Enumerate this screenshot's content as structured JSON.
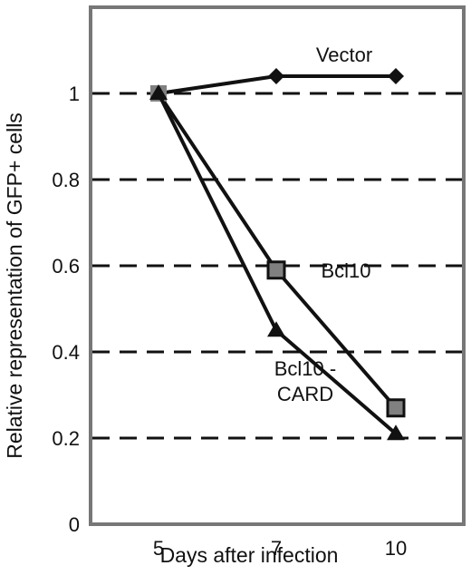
{
  "chart_data": {
    "type": "line",
    "xlabel": "Days after infection",
    "ylabel": "Relative representation of GFP+ cells",
    "x": [
      "5",
      "7",
      "10"
    ],
    "y_ticks": [
      "0",
      "0.2",
      "0.4",
      "0.6",
      "0.8",
      "1"
    ],
    "ylim": [
      0,
      1.2
    ],
    "grid": "dashed horizontal lines at 0.2, 0.4, 0.6, 0.8, 1",
    "series": [
      {
        "name": "Vector",
        "marker": "diamond",
        "marker_color": "#111111",
        "values": [
          1.0,
          1.04,
          1.04
        ]
      },
      {
        "name": "Bcl10",
        "marker": "square",
        "marker_color": "#808080",
        "values": [
          1.0,
          0.59,
          0.27
        ]
      },
      {
        "name": "Bcl10 - CARD",
        "marker": "triangle",
        "marker_color": "#111111",
        "values": [
          1.0,
          0.45,
          0.21
        ]
      }
    ],
    "annotations": [
      {
        "series": "Vector",
        "lines": [
          "Vector"
        ]
      },
      {
        "series": "Bcl10",
        "lines": [
          "Bcl10"
        ]
      },
      {
        "series": "Bcl10 - CARD",
        "lines": [
          "Bcl10 -",
          "CARD"
        ]
      }
    ]
  }
}
